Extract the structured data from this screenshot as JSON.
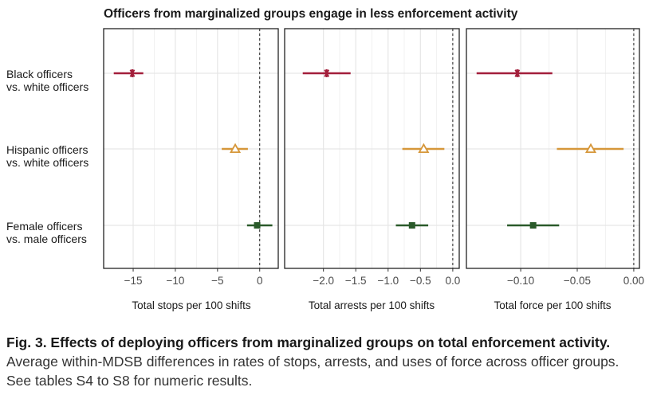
{
  "figure": {
    "title": "Officers from marginalized groups engage in less enforcement activity",
    "rows": [
      {
        "line1": "Black officers",
        "line2": "vs. white officers"
      },
      {
        "line1": "Hispanic officers",
        "line2": "vs. white officers"
      },
      {
        "line1": "Female officers",
        "line2": "vs. male officers"
      }
    ]
  },
  "colors": {
    "black": "#a31f3b",
    "hispanic": "#d6973a",
    "female": "#2a5a2a",
    "grid": "#e6e6e6",
    "panel_border": "#222222"
  },
  "markers": {
    "black": "asterisk",
    "hispanic": "triangle-open",
    "female": "square"
  },
  "chart_data": [
    {
      "type": "scatter",
      "xlabel": "Total stops per 100 shifts",
      "xlim": [
        -18.5,
        2.2
      ],
      "xticks": [
        -15,
        -10,
        -5,
        0
      ],
      "xtick_labels": [
        "−15",
        "−10",
        "−5",
        "0"
      ],
      "reference_line": 0,
      "categories": [
        "Black officers vs. white officers",
        "Hispanic officers vs. white officers",
        "Female officers vs. male officers"
      ],
      "estimates": [
        -15.1,
        -2.9,
        -0.3
      ],
      "ci_low": [
        -17.3,
        -4.5,
        -1.5
      ],
      "ci_high": [
        -13.8,
        -1.4,
        1.5
      ]
    },
    {
      "type": "scatter",
      "xlabel": "Total arrests per 100 shifts",
      "xlim": [
        -2.6,
        0.1
      ],
      "xticks": [
        -2.0,
        -1.5,
        -1.0,
        -0.5,
        0.0
      ],
      "xtick_labels": [
        "−2.0",
        "−1.5",
        "−1.0",
        "−0.5",
        "0.0"
      ],
      "reference_line": 0,
      "categories": [
        "Black officers vs. white officers",
        "Hispanic officers vs. white officers",
        "Female officers vs. male officers"
      ],
      "estimates": [
        -1.95,
        -0.45,
        -0.63
      ],
      "ci_low": [
        -2.32,
        -0.78,
        -0.88
      ],
      "ci_high": [
        -1.58,
        -0.13,
        -0.38
      ]
    },
    {
      "type": "scatter",
      "xlabel": "Total force per 100 shifts",
      "xlim": [
        -0.148,
        0.005
      ],
      "xticks": [
        -0.1,
        -0.05,
        0.0
      ],
      "xtick_labels": [
        "−0.10",
        "−0.05",
        "0.00"
      ],
      "reference_line": 0,
      "categories": [
        "Black officers vs. white officers",
        "Hispanic officers vs. white officers",
        "Female officers vs. male officers"
      ],
      "estimates": [
        -0.103,
        -0.038,
        -0.089
      ],
      "ci_low": [
        -0.139,
        -0.068,
        -0.112
      ],
      "ci_high": [
        -0.072,
        -0.009,
        -0.066
      ]
    }
  ],
  "caption": {
    "bold": "Fig. 3. Effects of deploying officers from marginalized groups on total enforcement activity.",
    "text": " Average within-MDSB differences in rates of stops, arrests, and uses of force across officer groups. See tables S4 to S8 for numeric results."
  }
}
